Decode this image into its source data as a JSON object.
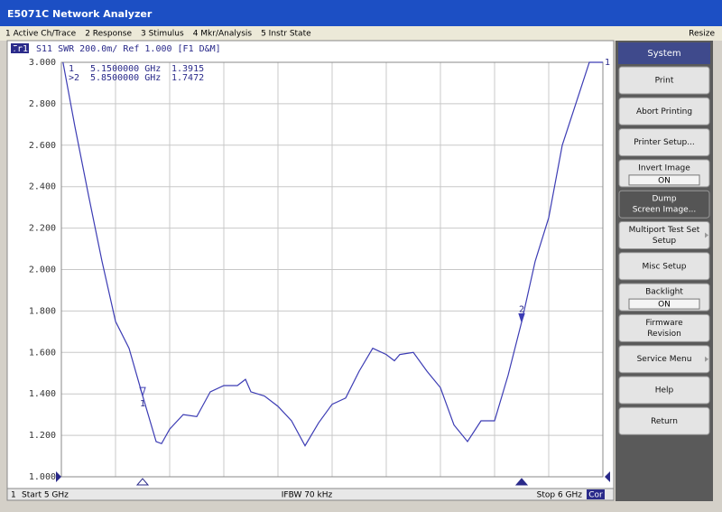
{
  "window": {
    "title": "E5071C Network Analyzer"
  },
  "menu": [
    "1 Active Ch/Trace",
    "2 Response",
    "3 Stimulus",
    "4 Mkr/Analysis",
    "5 Instr State"
  ],
  "menu_right": "Resize",
  "chart_data": {
    "type": "line",
    "trace_label": "Tr1",
    "title": "S11 SWR 200.0m/ Ref 1.000 [F1 D&M]",
    "color": "#3c3cb4",
    "grid": true,
    "ref_label": "1",
    "xlim": [
      5,
      6
    ],
    "xticks": [
      5,
      5.1,
      5.2,
      5.3,
      5.4,
      5.5,
      5.6,
      5.7,
      5.8,
      5.9,
      6
    ],
    "ylim": [
      1,
      3
    ],
    "yticks": [
      {
        "value": 1,
        "label": "1.000"
      },
      {
        "value": 1.2,
        "label": "1.200"
      },
      {
        "value": 1.4,
        "label": "1.400"
      },
      {
        "value": 1.6,
        "label": "1.600"
      },
      {
        "value": 1.8,
        "label": "1.800"
      },
      {
        "value": 2,
        "label": "2.000"
      },
      {
        "value": 2.2,
        "label": "2.200"
      },
      {
        "value": 2.4,
        "label": "2.400"
      },
      {
        "value": 2.6,
        "label": "2.600"
      },
      {
        "value": 2.8,
        "label": "2.800"
      },
      {
        "value": 3,
        "label": "3.000"
      }
    ],
    "x": [
      5.003,
      5.025,
      5.05,
      5.075,
      5.1,
      5.125,
      5.15,
      5.175,
      5.185,
      5.2,
      5.225,
      5.25,
      5.275,
      5.3,
      5.325,
      5.34,
      5.35,
      5.375,
      5.4,
      5.425,
      5.45,
      5.475,
      5.5,
      5.525,
      5.55,
      5.575,
      5.6,
      5.615,
      5.625,
      5.65,
      5.675,
      5.7,
      5.725,
      5.75,
      5.775,
      5.8,
      5.825,
      5.85,
      5.875,
      5.9,
      5.925,
      5.95,
      5.975,
      6
    ],
    "values": [
      3,
      2.69,
      2.36,
      2.04,
      1.75,
      1.62,
      1.3915,
      1.17,
      1.16,
      1.23,
      1.3,
      1.29,
      1.41,
      1.44,
      1.44,
      1.47,
      1.41,
      1.39,
      1.34,
      1.27,
      1.15,
      1.26,
      1.35,
      1.38,
      1.51,
      1.62,
      1.59,
      1.56,
      1.59,
      1.6,
      1.51,
      1.43,
      1.25,
      1.17,
      1.27,
      1.27,
      1.49,
      1.7472,
      2.04,
      2.25,
      2.6,
      2.8,
      3,
      3
    ],
    "markers": [
      {
        "id": "1",
        "readout_id": "1",
        "x": 5.15,
        "freq_label": "5.1500000 GHz",
        "value": 1.3915
      },
      {
        "id": "2",
        "readout_id": ">2",
        "x": 5.85,
        "freq_label": "5.8500000 GHz",
        "value": 1.7472
      }
    ]
  },
  "status": {
    "channel": "1",
    "start": "Start 5 GHz",
    "ifbw": "IFBW 70 kHz",
    "stop": "Stop 6 GHz",
    "cor": "Cor"
  },
  "softkeys": {
    "header": "System",
    "buttons": [
      {
        "lines": [
          "Print"
        ]
      },
      {
        "lines": [
          "Abort Printing"
        ]
      },
      {
        "lines": [
          "Printer Setup..."
        ]
      },
      {
        "lines": [
          "Invert Image"
        ],
        "state": "ON"
      },
      {
        "lines": [
          "Dump",
          "Screen Image..."
        ]
      },
      {
        "lines": [
          "Multiport Test Set",
          "Setup"
        ]
      },
      {
        "lines": [
          "Misc Setup"
        ]
      },
      {
        "lines": [
          "Backlight"
        ],
        "state": "ON"
      },
      {
        "lines": [
          "Firmware",
          "Revision"
        ]
      },
      {
        "lines": [
          "Service Menu"
        ]
      },
      {
        "lines": [
          "Help"
        ]
      },
      {
        "lines": [
          "Return"
        ]
      }
    ]
  }
}
